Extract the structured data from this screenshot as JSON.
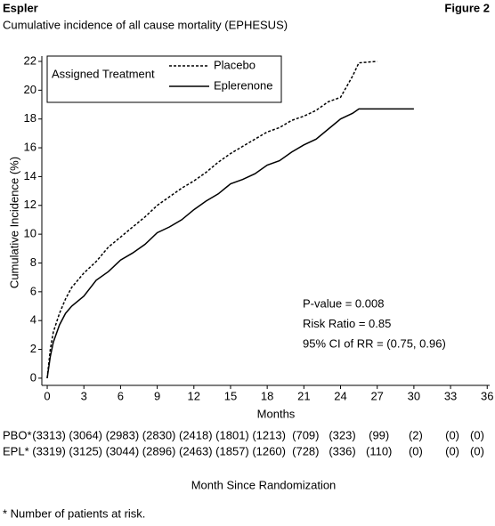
{
  "chart_data": {
    "type": "line",
    "header": "Espler",
    "figure_label": "Figure 2",
    "title": "Cumulative incidence of all cause mortality (EPHESUS)",
    "y_label": "Cumulative Incidence (%)",
    "x_label": "Months",
    "legend_title": "Assigned Treatment",
    "legend_position": "upper left",
    "x": [
      0,
      0.25,
      0.5,
      1,
      1.5,
      2,
      3,
      4,
      5,
      6,
      7,
      8,
      9,
      10,
      11,
      12,
      13,
      14,
      15,
      16,
      17,
      18,
      19,
      20,
      21,
      22,
      23,
      24,
      25,
      25.5,
      27,
      30
    ],
    "series": [
      {
        "name": "Placebo",
        "color": "#000000",
        "dash": true,
        "values": [
          0,
          2,
          3.2,
          4.5,
          5.5,
          6.3,
          7.3,
          8.1,
          9.1,
          9.8,
          10.5,
          11.2,
          12,
          12.6,
          13.2,
          13.7,
          14.3,
          15,
          15.6,
          16.1,
          16.6,
          17.1,
          17.4,
          17.9,
          18.2,
          18.6,
          19.2,
          19.5,
          21,
          21.9,
          22,
          null
        ]
      },
      {
        "name": "Eplerenone",
        "color": "#000000",
        "dash": false,
        "values": [
          0,
          1.5,
          2.5,
          3.7,
          4.5,
          5,
          5.7,
          6.8,
          7.4,
          8.2,
          8.7,
          9.3,
          10.1,
          10.5,
          11,
          11.7,
          12.3,
          12.8,
          13.5,
          13.8,
          14.2,
          14.8,
          15.1,
          15.7,
          16.2,
          16.6,
          17.3,
          18,
          18.4,
          18.7,
          18.7,
          18.7
        ]
      }
    ],
    "xlim": [
      -0.44,
      36.2
    ],
    "ylim": [
      -0.5,
      22.37
    ],
    "xticks": [
      0,
      3,
      6,
      9,
      12,
      15,
      18,
      21,
      24,
      27,
      30,
      33,
      36
    ],
    "yticks": [
      0,
      2,
      4,
      6,
      8,
      10,
      12,
      14,
      16,
      18,
      20,
      22
    ],
    "annotations": [
      "P-value = 0.008",
      "Risk Ratio = 0.85",
      "95% CI of RR = (0.75, 0.96)"
    ],
    "risk_table": {
      "title": "Month Since Randomization",
      "rows": [
        {
          "label": "PBO*",
          "cells": [
            "(3313)",
            "(3064)",
            "(2983)",
            "(2830)",
            "(2418)",
            "(1801)",
            "(1213)",
            "(709)",
            "(323)",
            "(99)",
            "(2)",
            "(0)",
            "(0)"
          ]
        },
        {
          "label": "EPL*",
          "cells": [
            "(3319)",
            "(3125)",
            "(3044)",
            "(2896)",
            "(2463)",
            "(1857)",
            "(1260)",
            "(728)",
            "(336)",
            "(110)",
            "(0)",
            "(0)",
            "(0)"
          ]
        }
      ]
    },
    "footnote": "* Number of patients at risk."
  }
}
